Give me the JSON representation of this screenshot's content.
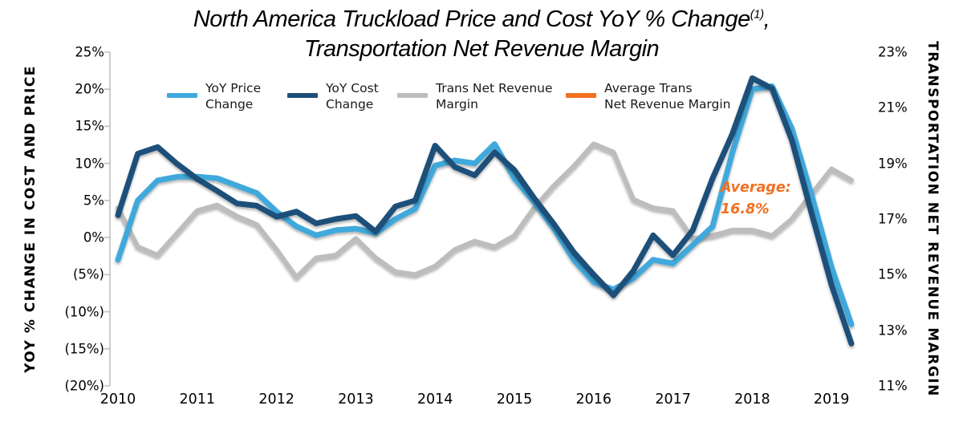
{
  "title": {
    "line1": "North America Truckload Price and Cost YoY % Change",
    "sup": "(1)",
    "line1_suffix": ",",
    "line2": "Transportation Net Revenue Margin"
  },
  "axes": {
    "left": {
      "title": "YOY % CHANGE IN COST AND PRICE",
      "ticks": [
        "25%",
        "20%",
        "15%",
        "10%",
        "5%",
        "0%",
        "(5%)",
        "(10%)",
        "(15%)",
        "(20%)"
      ],
      "tick_values": [
        25,
        20,
        15,
        10,
        5,
        0,
        -5,
        -10,
        -15,
        -20
      ]
    },
    "right": {
      "title": "TRANSPORTATION NET REVENUE MARGIN",
      "ticks": [
        "23%",
        "21%",
        "19%",
        "17%",
        "15%",
        "13%",
        "11%"
      ],
      "tick_values": [
        23,
        21,
        19,
        17,
        15,
        13,
        11
      ]
    },
    "x": {
      "ticks": [
        "2010",
        "2011",
        "2012",
        "2013",
        "2014",
        "2015",
        "2016",
        "2017",
        "2018",
        "2019"
      ]
    }
  },
  "legend": {
    "items": [
      {
        "label_lines": [
          "YoY Price",
          "Change"
        ],
        "color": "#3FA9DC"
      },
      {
        "label_lines": [
          "YoY Cost",
          "Change"
        ],
        "color": "#1E4F79"
      },
      {
        "label_lines": [
          "Trans Net Revenue",
          "Margin"
        ],
        "color": "#BDBDBD"
      },
      {
        "label_lines": [
          "Average Trans",
          "Net Revenue Margin"
        ],
        "color": "#F27021"
      }
    ]
  },
  "annotation": {
    "line1": "Average:",
    "line2": "16.8%",
    "color": "#F27021"
  },
  "chart_data": {
    "type": "line",
    "title": "North America Truckload Price and Cost YoY % Change(1), Transportation Net Revenue Margin",
    "x_unit": "quarterly",
    "x_range": [
      "2010 Q1",
      "2019 Q2"
    ],
    "x_labels": [
      "2010",
      "2011",
      "2012",
      "2013",
      "2014",
      "2015",
      "2016",
      "2017",
      "2018",
      "2019"
    ],
    "left_axis": {
      "label": "YOY % CHANGE IN COST AND PRICE",
      "min": -20,
      "max": 25
    },
    "right_axis": {
      "label": "TRANSPORTATION NET REVENUE MARGIN",
      "min": 11,
      "max": 23
    },
    "grid": false,
    "legend_position": "top-inside",
    "series": [
      {
        "name": "YoY Price Change",
        "axis": "left",
        "color": "#3FA9DC",
        "values": [
          -3.0,
          5.0,
          7.7,
          8.2,
          8.2,
          8.0,
          7.0,
          6.0,
          3.5,
          1.5,
          0.3,
          1.0,
          1.2,
          0.6,
          2.5,
          3.9,
          9.7,
          10.4,
          10.0,
          12.6,
          8.0,
          4.8,
          1.2,
          -3.0,
          -6.0,
          -7.0,
          -5.5,
          -3.0,
          -3.5,
          -1.0,
          1.5,
          11.5,
          20.0,
          20.4,
          14.7,
          5.7,
          -4.0,
          -11.7
        ]
      },
      {
        "name": "YoY Cost Change",
        "axis": "left",
        "color": "#1E4F79",
        "values": [
          3.0,
          11.3,
          12.2,
          9.9,
          7.9,
          6.3,
          4.6,
          4.3,
          2.8,
          3.5,
          1.9,
          2.5,
          2.9,
          0.8,
          4.2,
          5.0,
          12.4,
          9.5,
          8.4,
          11.5,
          9.1,
          5.3,
          1.8,
          -2.0,
          -5.0,
          -7.8,
          -4.5,
          0.3,
          -2.4,
          1.0,
          8.0,
          14.0,
          21.5,
          20.1,
          13.1,
          3.2,
          -6.4,
          -14.3
        ]
      },
      {
        "name": "Trans Net Revenue Margin",
        "axis": "right",
        "color": "#BDBDBD",
        "values": [
          17.4,
          16.0,
          15.7,
          16.5,
          17.3,
          17.5,
          17.1,
          16.8,
          15.9,
          14.9,
          15.6,
          15.7,
          16.3,
          15.6,
          15.1,
          15.0,
          15.3,
          15.9,
          16.2,
          16.0,
          16.4,
          17.4,
          18.2,
          18.9,
          19.7,
          19.4,
          17.7,
          17.4,
          17.3,
          16.3,
          16.4,
          16.6,
          16.6,
          16.4,
          17.0,
          17.9,
          18.8,
          18.4
        ]
      },
      {
        "name": "Average Trans Net Revenue Margin",
        "axis": "right",
        "color": "#F27021",
        "constant": 16.8
      }
    ],
    "annotation": "Average: 16.8%"
  }
}
